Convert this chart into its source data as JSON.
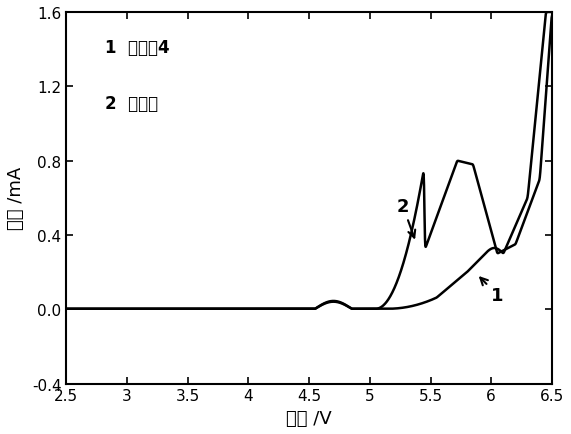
{
  "xlim": [
    2.5,
    6.5
  ],
  "ylim": [
    -0.4,
    1.6
  ],
  "xticks": [
    2.5,
    3.0,
    3.5,
    4.0,
    4.5,
    5.0,
    5.5,
    6.0,
    6.5
  ],
  "yticks": [
    -0.4,
    0.0,
    0.4,
    0.8,
    1.2,
    1.6
  ],
  "xlabel": "电压 /V",
  "ylabel": "电流 /mA",
  "legend_line1": "1  实施夓4",
  "legend_line2": "2  对比例",
  "label1": "1",
  "label2": "2",
  "background_color": "#ffffff",
  "line_color": "#000000",
  "figsize": [
    5.71,
    4.35
  ],
  "dpi": 100
}
